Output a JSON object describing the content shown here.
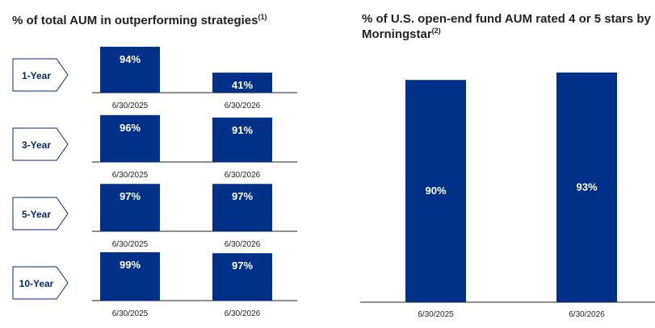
{
  "left_title": {
    "text": "% of total AUM in outperforming strategies",
    "note": "(1)"
  },
  "right_title": {
    "text": "% of U.S. open-end fund AUM rated 4 or 5 stars by Morningstar",
    "note": "(2)"
  },
  "colors": {
    "bar": "#003087",
    "bar_text": "#ffffff",
    "chevron_border": "#0a2a6e",
    "axis": "#222222"
  },
  "chart_data": [
    {
      "type": "bar",
      "title": "% of total AUM in outperforming strategies",
      "panel": "1-Year",
      "categories": [
        "6/30/2025",
        "6/30/2026"
      ],
      "values": [
        94,
        41
      ],
      "value_labels": [
        "94%",
        "41%"
      ],
      "ylim": [
        0,
        100
      ]
    },
    {
      "type": "bar",
      "title": "% of total AUM in outperforming strategies",
      "panel": "3-Year",
      "categories": [
        "6/30/2025",
        "6/30/2026"
      ],
      "values": [
        96,
        91
      ],
      "value_labels": [
        "96%",
        "91%"
      ],
      "ylim": [
        0,
        100
      ]
    },
    {
      "type": "bar",
      "title": "% of total AUM in outperforming strategies",
      "panel": "5-Year",
      "categories": [
        "6/30/2025",
        "6/30/2026"
      ],
      "values": [
        97,
        97
      ],
      "value_labels": [
        "97%",
        "97%"
      ],
      "ylim": [
        0,
        100
      ]
    },
    {
      "type": "bar",
      "title": "% of total AUM in outperforming strategies",
      "panel": "10-Year",
      "categories": [
        "6/30/2025",
        "6/30/2026"
      ],
      "values": [
        99,
        97
      ],
      "value_labels": [
        "99%",
        "97%"
      ],
      "ylim": [
        0,
        100
      ]
    },
    {
      "type": "bar",
      "title": "% of U.S. open-end fund AUM rated 4 or 5 stars by Morningstar",
      "categories": [
        "6/30/2025",
        "6/30/2026"
      ],
      "values": [
        90,
        93
      ],
      "value_labels": [
        "90%",
        "93%"
      ],
      "ylim": [
        0,
        100
      ]
    }
  ]
}
